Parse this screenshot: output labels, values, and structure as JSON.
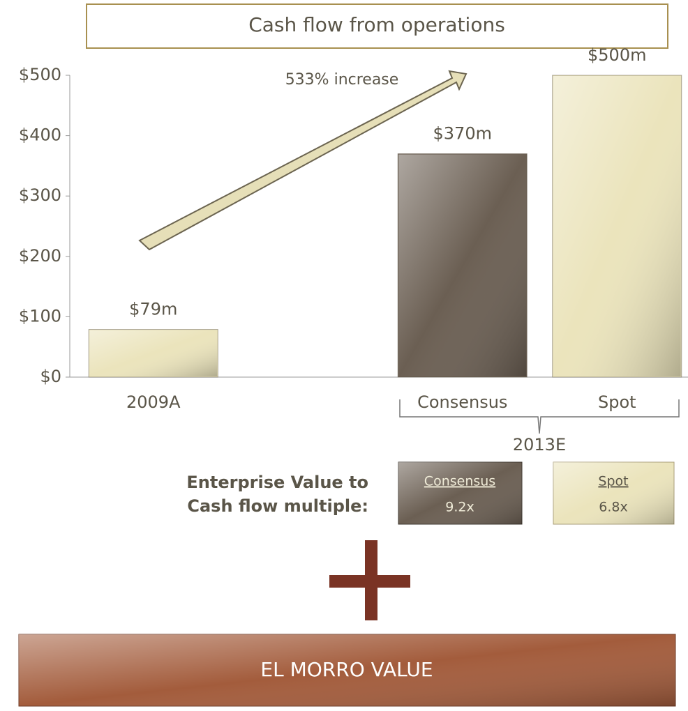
{
  "chart_data": {
    "type": "bar",
    "title": "Cash flow from operations",
    "categories": [
      "2009A",
      null,
      "Consensus",
      "Spot"
    ],
    "values": [
      79,
      null,
      370,
      500
    ],
    "value_labels": [
      "$79m",
      null,
      "$370m",
      "$500m"
    ],
    "colors": [
      "#ebe4bc",
      null,
      "#6b5f53",
      "#ebe4bc"
    ],
    "ylim": [
      0,
      500
    ],
    "yticks": [
      {
        "value": 0,
        "label": "$0"
      },
      {
        "value": 100,
        "label": "$100"
      },
      {
        "value": 200,
        "label": "$200"
      },
      {
        "value": 300,
        "label": "$300"
      },
      {
        "value": 400,
        "label": "$400"
      },
      {
        "value": 500,
        "label": "$500"
      }
    ],
    "annotation": "533% increase",
    "group_label": "2013E"
  },
  "multiples": {
    "label": [
      "Enterprise Value to",
      "Cash flow multiple:"
    ],
    "items": [
      {
        "name": "Consensus",
        "value": "9.2x"
      },
      {
        "name": "Spot",
        "value": "6.8x"
      }
    ]
  },
  "footer": "EL MORRO VALUE"
}
